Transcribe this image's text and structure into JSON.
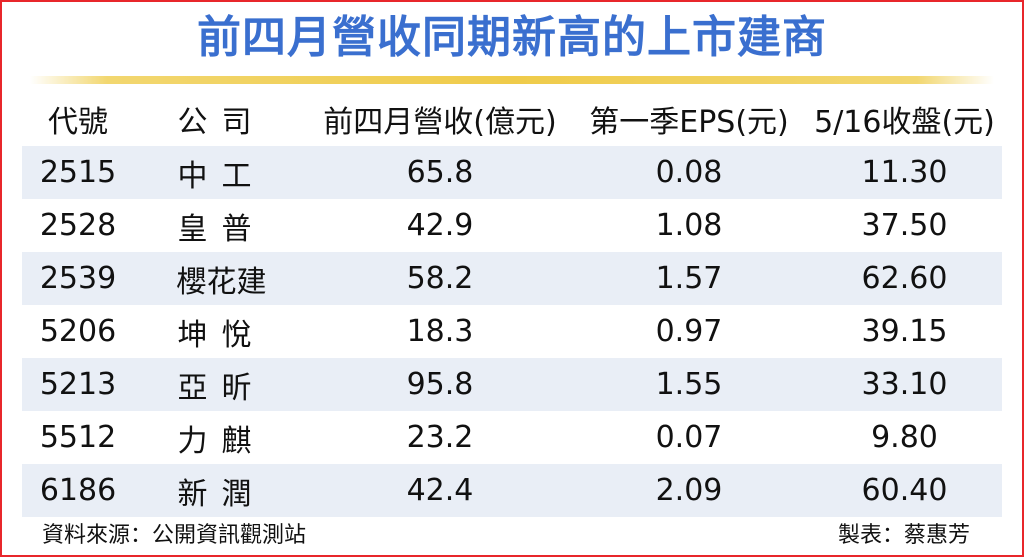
{
  "title": "前四月營收同期新高的上市建商",
  "headers": {
    "code": "代號",
    "company": "公司",
    "revenue": "前四月營收(億元)",
    "eps": "第一季EPS(元)",
    "close": "5/16收盤(元)"
  },
  "rows": [
    {
      "code": "2515",
      "company": "中工",
      "revenue": "65.8",
      "eps": "0.08",
      "close": "11.30"
    },
    {
      "code": "2528",
      "company": "皇普",
      "revenue": "42.9",
      "eps": "1.08",
      "close": "37.50"
    },
    {
      "code": "2539",
      "company": "櫻花建",
      "revenue": "58.2",
      "eps": "1.57",
      "close": "62.60"
    },
    {
      "code": "5206",
      "company": "坤悅",
      "revenue": "18.3",
      "eps": "0.97",
      "close": "39.15"
    },
    {
      "code": "5213",
      "company": "亞昕",
      "revenue": "95.8",
      "eps": "1.55",
      "close": "33.10"
    },
    {
      "code": "5512",
      "company": "力麒",
      "revenue": "23.2",
      "eps": "0.07",
      "close": "9.80"
    },
    {
      "code": "6186",
      "company": "新潤",
      "revenue": "42.4",
      "eps": "2.09",
      "close": "60.40"
    }
  ],
  "footer": {
    "source": "資料來源：公開資訊觀測站",
    "maker": "製表：蔡惠芳"
  },
  "colors": {
    "title": "#3a6fcf",
    "border": "#e8262b",
    "stripe": "#e9eef6",
    "rule": "#efcb4a"
  }
}
